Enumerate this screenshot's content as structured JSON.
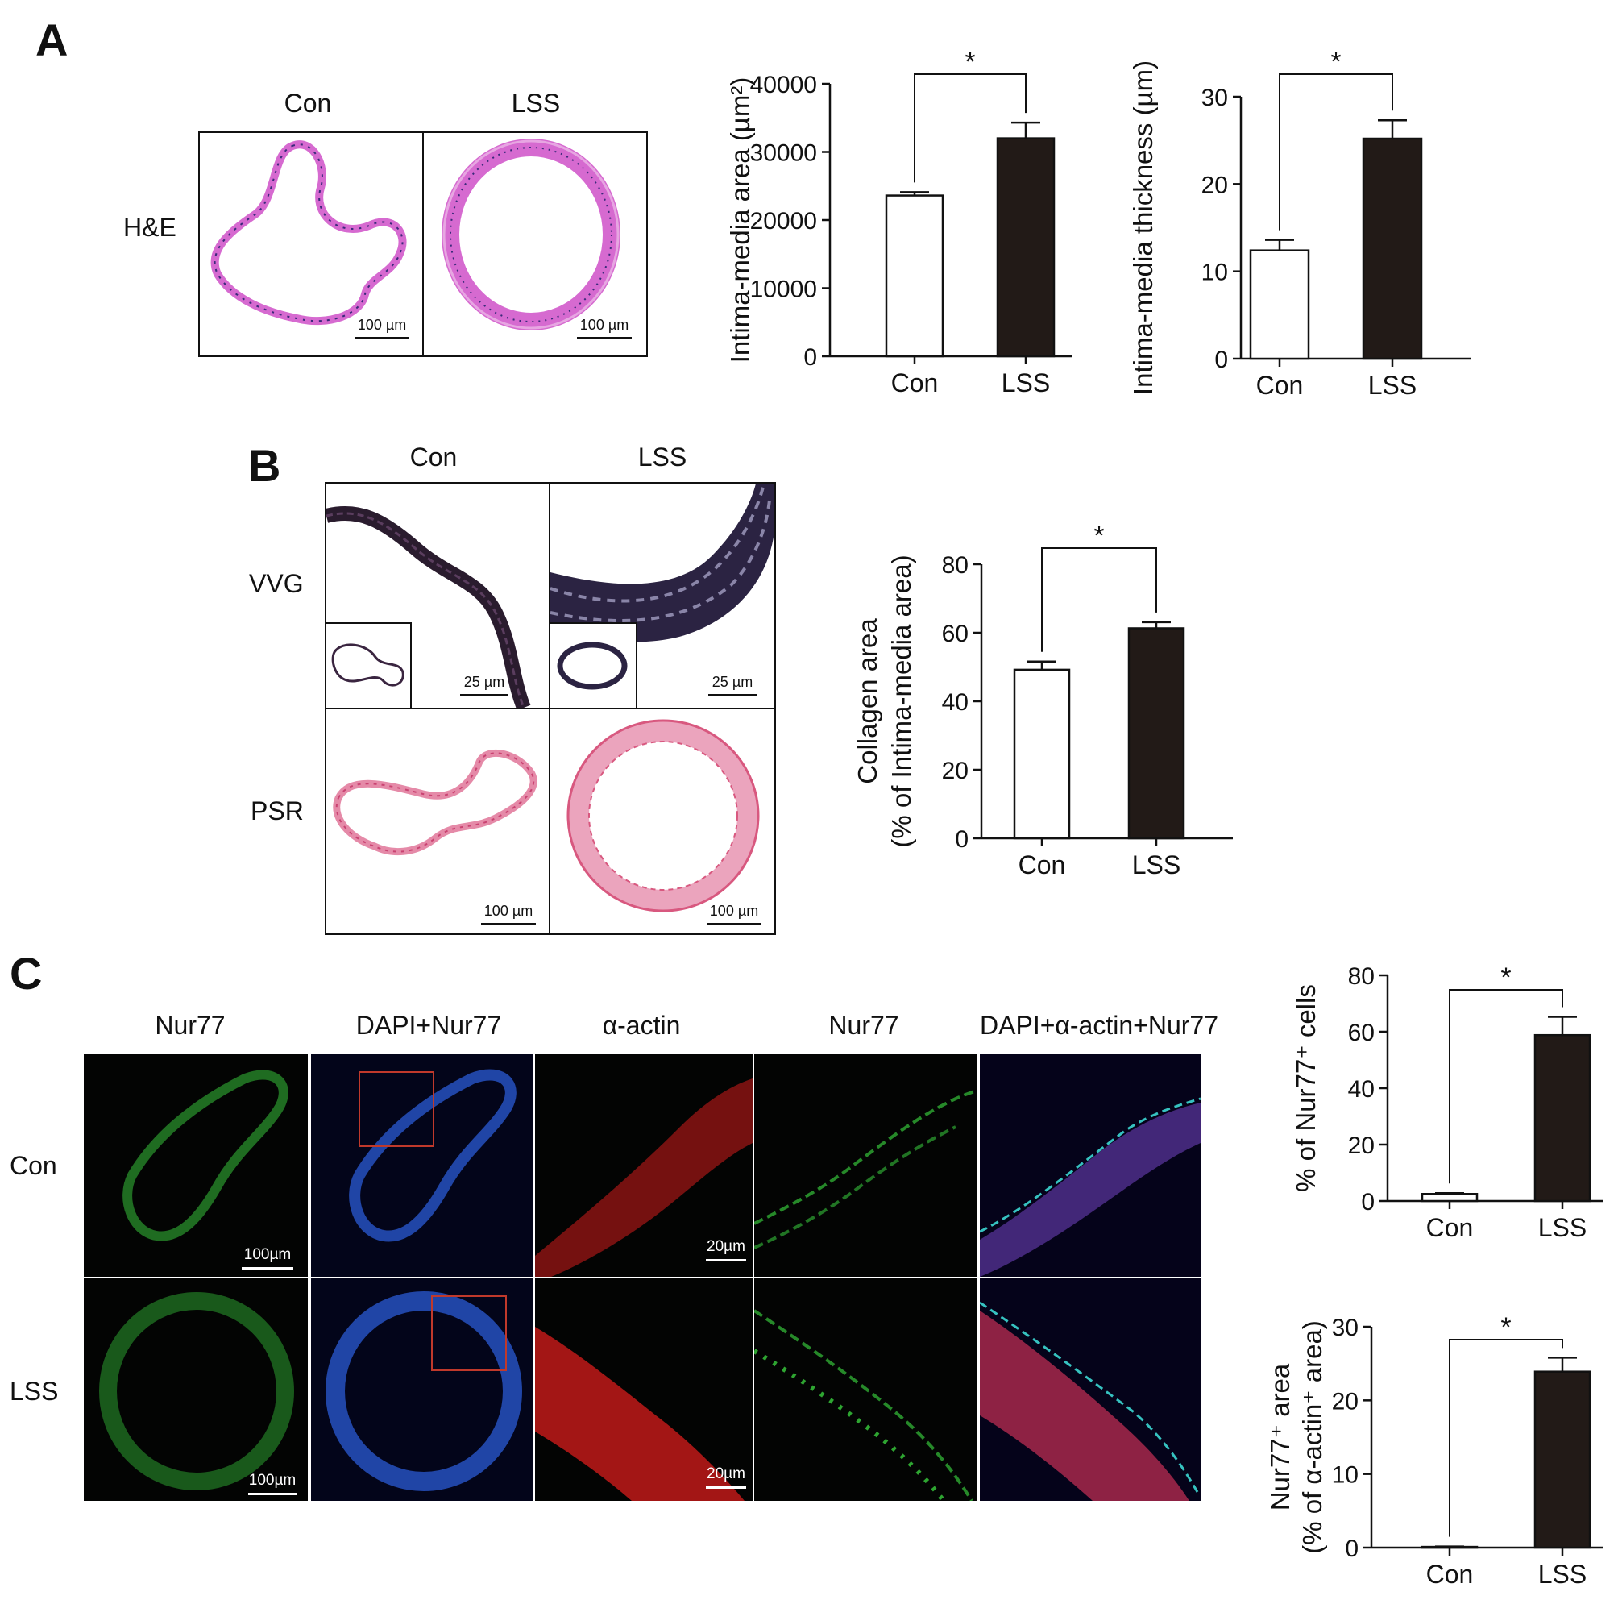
{
  "panels": {
    "a": {
      "letter": "A",
      "col_con": "Con",
      "col_lss": "LSS",
      "row_he": "H&E",
      "scale_he_con": "100 µm",
      "scale_he_lss": "100 µm"
    },
    "b": {
      "letter": "B",
      "col_con": "Con",
      "col_lss": "LSS",
      "row_vvg": "VVG",
      "row_psr": "PSR",
      "scale_vvg_con": "25 µm",
      "scale_vvg_lss": "25 µm",
      "scale_psr_con": "100 µm",
      "scale_psr_lss": "100 µm"
    },
    "c": {
      "letter": "C",
      "col_nur77": "Nur77",
      "col_dapi_nur77": "DAPI+Nur77",
      "col_actin": "α-actin",
      "col_nur77_zoom": "Nur77",
      "col_merge": "DAPI+α-actin+Nur77",
      "row_con": "Con",
      "row_lss": "LSS",
      "scale_con_low": "100µm",
      "scale_lss_low": "100µm",
      "scale_con_high": "20µm",
      "scale_lss_high": "20µm"
    }
  },
  "colors": {
    "con_bar": "#ffffff",
    "lss_bar": "#221a17",
    "he_stain": "#d66ad0",
    "he_nuclei": "#3a2a7a",
    "vvg_stain": "#2a1c2e",
    "psr_stain": "#e58aa8",
    "nur77_green": "#36c23a",
    "dapi_blue": "#2b3fd6",
    "actin_red": "#e81e1e"
  },
  "chart_data": [
    {
      "id": "intima-media-area",
      "type": "bar",
      "categories": [
        "Con",
        "LSS"
      ],
      "values": [
        23600,
        32000
      ],
      "errors": [
        500,
        2300
      ],
      "ylabel": "Intima-media area (µm²)",
      "ylim": [
        0,
        40000
      ],
      "yticks": [
        "0",
        "10000",
        "20000",
        "30000",
        "40000"
      ],
      "significance": "*"
    },
    {
      "id": "intima-media-thickness",
      "type": "bar",
      "categories": [
        "Con",
        "LSS"
      ],
      "values": [
        12.4,
        25.2
      ],
      "errors": [
        1.2,
        2.1
      ],
      "ylabel": "Intima-media thickness (µm)",
      "ylim": [
        0,
        30
      ],
      "yticks": [
        "0",
        "10",
        "20",
        "30"
      ],
      "significance": "*"
    },
    {
      "id": "collagen-area",
      "type": "bar",
      "categories": [
        "Con",
        "LSS"
      ],
      "values": [
        49.2,
        61.3
      ],
      "errors": [
        2.4,
        1.8
      ],
      "ylabel": "Collagen area",
      "ylabel2": "(% of Intima-media area)",
      "ylim": [
        0,
        80
      ],
      "yticks": [
        "0",
        "20",
        "40",
        "60",
        "80"
      ],
      "significance": "*"
    },
    {
      "id": "nur77-cells",
      "type": "bar",
      "categories": [
        "Con",
        "LSS"
      ],
      "values": [
        2.5,
        58.8
      ],
      "errors": [
        0.3,
        6.5
      ],
      "ylabel": "% of Nur77⁺ cells",
      "ylim": [
        0,
        80
      ],
      "yticks": [
        "0",
        "20",
        "40",
        "60",
        "80"
      ],
      "significance": "*"
    },
    {
      "id": "nur77-area",
      "type": "bar",
      "categories": [
        "Con",
        "LSS"
      ],
      "values": [
        0.1,
        23.9
      ],
      "errors": [
        0.05,
        1.9
      ],
      "ylabel": "Nur77⁺ area",
      "ylabel2": "(% of α-actin⁺ area)",
      "ylim": [
        0,
        30
      ],
      "yticks": [
        "0",
        "10",
        "20",
        "30"
      ],
      "significance": "*"
    }
  ]
}
